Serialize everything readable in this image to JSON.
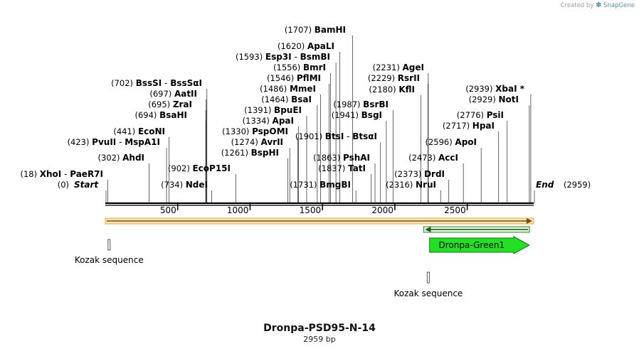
{
  "credit": {
    "prefix": "Created by",
    "icon": "snapgene-logo-icon",
    "brand": "SnapGene"
  },
  "plasmid": {
    "name": "Dronpa-PSD95-N-14",
    "length_label": "2959 bp",
    "length": 2959
  },
  "ends": {
    "start_pos": "(0)",
    "start_label": "Start",
    "end_label": "End",
    "end_pos": "(2959)"
  },
  "ruler": {
    "ticks": [
      500,
      1000,
      1500,
      2000,
      2500
    ]
  },
  "sites": [
    {
      "pos": 18,
      "label": "(18)",
      "names": [
        "XhoI",
        "PaeR7I"
      ]
    },
    {
      "pos": 302,
      "label": "(302)",
      "names": [
        "AhdI"
      ]
    },
    {
      "pos": 423,
      "label": "(423)",
      "names": [
        "PvuII",
        "MspA1I"
      ]
    },
    {
      "pos": 441,
      "label": "(441)",
      "names": [
        "EcoNI"
      ]
    },
    {
      "pos": 694,
      "label": "(694)",
      "names": [
        "BsaHI"
      ]
    },
    {
      "pos": 695,
      "label": "(695)",
      "names": [
        "ZraI"
      ]
    },
    {
      "pos": 697,
      "label": "(697)",
      "names": [
        "AatII"
      ]
    },
    {
      "pos": 702,
      "label": "(702)",
      "names": [
        "BssSI",
        "BssSαI"
      ]
    },
    {
      "pos": 734,
      "label": "(734)",
      "names": [
        "NdeI"
      ]
    },
    {
      "pos": 902,
      "label": "(902)",
      "names": [
        "EcoP15I"
      ]
    },
    {
      "pos": 1261,
      "label": "(1261)",
      "names": [
        "BspHI"
      ]
    },
    {
      "pos": 1274,
      "label": "(1274)",
      "names": [
        "AvrII"
      ]
    },
    {
      "pos": 1330,
      "label": "(1330)",
      "names": [
        "PspOMI"
      ]
    },
    {
      "pos": 1334,
      "label": "(1334)",
      "names": [
        "ApaI"
      ]
    },
    {
      "pos": 1391,
      "label": "(1391)",
      "names": [
        "BpuEI"
      ]
    },
    {
      "pos": 1464,
      "label": "(1464)",
      "names": [
        "BsaI"
      ]
    },
    {
      "pos": 1486,
      "label": "(1486)",
      "names": [
        "MmeI"
      ]
    },
    {
      "pos": 1546,
      "label": "(1546)",
      "names": [
        "PflMI"
      ]
    },
    {
      "pos": 1556,
      "label": "(1556)",
      "names": [
        "BmrI"
      ]
    },
    {
      "pos": 1593,
      "label": "(1593)",
      "names": [
        "Esp3I",
        "BsmBI"
      ]
    },
    {
      "pos": 1620,
      "label": "(1620)",
      "names": [
        "ApaLI"
      ]
    },
    {
      "pos": 1707,
      "label": "(1707)",
      "names": [
        "BamHI"
      ]
    },
    {
      "pos": 1731,
      "label": "(1731)",
      "names": [
        "BmgBI"
      ]
    },
    {
      "pos": 1837,
      "label": "(1837)",
      "names": [
        "TatI"
      ]
    },
    {
      "pos": 1863,
      "label": "(1863)",
      "names": [
        "PshAI"
      ]
    },
    {
      "pos": 1901,
      "label": "(1901)",
      "names": [
        "BtsI",
        "BtsαI"
      ]
    },
    {
      "pos": 1941,
      "label": "(1941)",
      "names": [
        "BsgI"
      ]
    },
    {
      "pos": 1987,
      "label": "(1987)",
      "names": [
        "BsrBI"
      ]
    },
    {
      "pos": 2180,
      "label": "(2180)",
      "names": [
        "KflI"
      ]
    },
    {
      "pos": 2229,
      "label": "(2229)",
      "names": [
        "RsrII"
      ]
    },
    {
      "pos": 2231,
      "label": "(2231)",
      "names": [
        "AgeI"
      ]
    },
    {
      "pos": 2316,
      "label": "(2316)",
      "names": [
        "NruI"
      ]
    },
    {
      "pos": 2373,
      "label": "(2373)",
      "names": [
        "DrdI"
      ]
    },
    {
      "pos": 2473,
      "label": "(2473)",
      "names": [
        "AccI"
      ]
    },
    {
      "pos": 2596,
      "label": "(2596)",
      "names": [
        "ApoI"
      ]
    },
    {
      "pos": 2717,
      "label": "(2717)",
      "names": [
        "HpaI"
      ]
    },
    {
      "pos": 2776,
      "label": "(2776)",
      "names": [
        "PsiI"
      ]
    },
    {
      "pos": 2929,
      "label": "(2929)",
      "names": [
        "NotI"
      ]
    },
    {
      "pos": 2939,
      "label": "(2939)",
      "names": [
        "XbaI *"
      ]
    }
  ],
  "features": [
    {
      "name": "orf-1",
      "type": "orf",
      "start": 0,
      "end": 2959,
      "direction": "forward",
      "color": "#f2a33a"
    },
    {
      "name": "orf-2",
      "type": "orf",
      "start": 2199,
      "end": 2930,
      "direction": "reverse",
      "color": "#2a8a2a"
    },
    {
      "name": "Dronpa-Green1",
      "type": "cds",
      "start": 2240,
      "end": 2929,
      "direction": "forward",
      "color": "#22e022",
      "text": "Dronpa-Green1"
    },
    {
      "name": "Kozak sequence",
      "type": "misc",
      "pos": 26,
      "text": "Kozak sequence"
    },
    {
      "name": "Kozak sequence",
      "type": "misc",
      "pos": 2231,
      "text": "Kozak sequence"
    }
  ]
}
